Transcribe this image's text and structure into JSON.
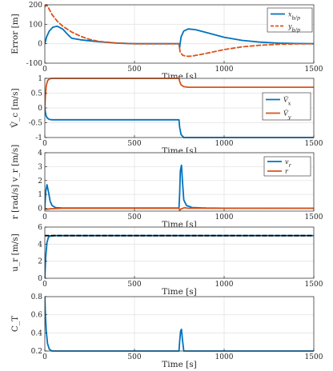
{
  "chart_data": [
    {
      "type": "line",
      "xlabel": "Time [s]",
      "ylabel": "Error [m]",
      "xlim": [
        0,
        1500
      ],
      "ylim": [
        -100,
        200
      ],
      "xticks": [
        0,
        500,
        1000,
        1500
      ],
      "yticks": [
        -100,
        0,
        100,
        200
      ],
      "grid": true,
      "legend": "top-right",
      "series": [
        {
          "name": "x_{b/p}",
          "color": "#0072bd",
          "style": "solid",
          "x": [
            0,
            10,
            25,
            45,
            70,
            100,
            130,
            150,
            200,
            300,
            400,
            500,
            600,
            700,
            748,
            752,
            760,
            775,
            800,
            840,
            900,
            1000,
            1100,
            1200,
            1300,
            1400,
            1500
          ],
          "y": [
            0,
            35,
            65,
            85,
            90,
            75,
            45,
            28,
            20,
            10,
            3,
            0,
            0,
            0,
            0,
            -20,
            35,
            65,
            76,
            72,
            58,
            33,
            17,
            8,
            3,
            1,
            0
          ]
        },
        {
          "name": "y_{b/p}",
          "color": "#d95319",
          "style": "dashed",
          "x": [
            0,
            10,
            20,
            40,
            70,
            100,
            150,
            200,
            250,
            300,
            400,
            500,
            600,
            700,
            748,
            755,
            770,
            800,
            830,
            900,
            1000,
            1100,
            1200,
            1300,
            1400,
            1500
          ],
          "y": [
            190,
            200,
            185,
            150,
            115,
            90,
            60,
            38,
            22,
            12,
            3,
            0,
            0,
            0,
            0,
            -45,
            -60,
            -65,
            -62,
            -50,
            -30,
            -16,
            -8,
            -3,
            -1,
            0
          ]
        }
      ]
    },
    {
      "type": "line",
      "xlabel": "Time [s]",
      "ylabel": "V̂_c [m/s]",
      "xlim": [
        0,
        1500
      ],
      "ylim": [
        -1,
        1
      ],
      "xticks": [
        0,
        500,
        1000,
        1500
      ],
      "yticks": [
        -1,
        -0.5,
        0,
        0.5,
        1
      ],
      "grid": true,
      "legend": "right",
      "series": [
        {
          "name": "V̂_x",
          "color": "#0072bd",
          "style": "solid",
          "x": [
            0,
            3,
            8,
            15,
            25,
            40,
            60,
            100,
            200,
            748,
            752,
            760,
            775,
            800,
            1500
          ],
          "y": [
            0,
            -0.15,
            -0.28,
            -0.35,
            -0.39,
            -0.4,
            -0.4,
            -0.4,
            -0.4,
            -0.4,
            -0.65,
            -0.9,
            -1.0,
            -1.0,
            -1.0
          ]
        },
        {
          "name": "V̂_y",
          "color": "#d95319",
          "style": "solid",
          "x": [
            0,
            3,
            8,
            15,
            25,
            40,
            60,
            100,
            748,
            752,
            760,
            775,
            800,
            1500
          ],
          "y": [
            0,
            0.4,
            0.75,
            0.92,
            0.98,
            1.0,
            1.0,
            1.0,
            1.0,
            0.9,
            0.78,
            0.72,
            0.7,
            0.7
          ]
        }
      ]
    },
    {
      "type": "line",
      "xlabel": "Time [s]",
      "ylabel": "r [rad/s]   v_r [m/s]",
      "xlim": [
        0,
        1500
      ],
      "ylim": [
        -0.2,
        4
      ],
      "xticks": [
        0,
        500,
        1000,
        1500
      ],
      "yticks": [
        0,
        1,
        2,
        3,
        4
      ],
      "grid": true,
      "legend": "top-right",
      "series": [
        {
          "name": "v_r",
          "color": "#0072bd",
          "style": "solid",
          "x": [
            0,
            5,
            12,
            20,
            30,
            40,
            60,
            100,
            748,
            752,
            756,
            762,
            768,
            775,
            790,
            820,
            900,
            1000,
            1500
          ],
          "y": [
            0,
            1.2,
            1.7,
            1.2,
            0.5,
            0.2,
            0.05,
            0.02,
            0.02,
            1.0,
            2.7,
            3.1,
            1.9,
            0.6,
            0.2,
            0.06,
            0.02,
            0.01,
            0.0
          ]
        },
        {
          "name": "r",
          "color": "#d95319",
          "style": "solid",
          "x": [
            0,
            10,
            30,
            100,
            748,
            752,
            760,
            780,
            800,
            1500
          ],
          "y": [
            -0.05,
            -0.08,
            -0.04,
            0,
            0,
            -0.15,
            -0.05,
            0.05,
            0,
            0
          ]
        }
      ]
    },
    {
      "type": "line",
      "xlabel": "Time [s]",
      "ylabel": "u_r [m/s]",
      "xlim": [
        0,
        1500
      ],
      "ylim": [
        0,
        6
      ],
      "xticks": [
        0,
        500,
        1000,
        1500
      ],
      "yticks": [
        0,
        2,
        4,
        6
      ],
      "grid": true,
      "series": [
        {
          "color": "#0072bd",
          "style": "solid",
          "x": [
            0,
            5,
            12,
            20,
            30,
            50,
            1500
          ],
          "y": [
            0,
            2.5,
            4.2,
            4.8,
            4.95,
            5.0,
            5.0
          ]
        },
        {
          "color": "#000000",
          "style": "dashed",
          "x": [
            0,
            1500
          ],
          "y": [
            5,
            5
          ]
        }
      ]
    },
    {
      "type": "line",
      "xlabel": "Time [s]",
      "ylabel": "C_T",
      "xlim": [
        0,
        1500
      ],
      "ylim": [
        0.2,
        0.8
      ],
      "xticks": [
        0,
        500,
        1000,
        1500
      ],
      "yticks": [
        0.2,
        0.4,
        0.6,
        0.8
      ],
      "grid": true,
      "series": [
        {
          "color": "#0072bd",
          "style": "solid",
          "x": [
            0,
            3,
            8,
            15,
            25,
            40,
            748,
            752,
            757,
            762,
            768,
            775,
            1500
          ],
          "y": [
            0.8,
            0.6,
            0.42,
            0.28,
            0.22,
            0.2,
            0.2,
            0.3,
            0.42,
            0.44,
            0.32,
            0.2,
            0.2
          ]
        }
      ]
    }
  ]
}
